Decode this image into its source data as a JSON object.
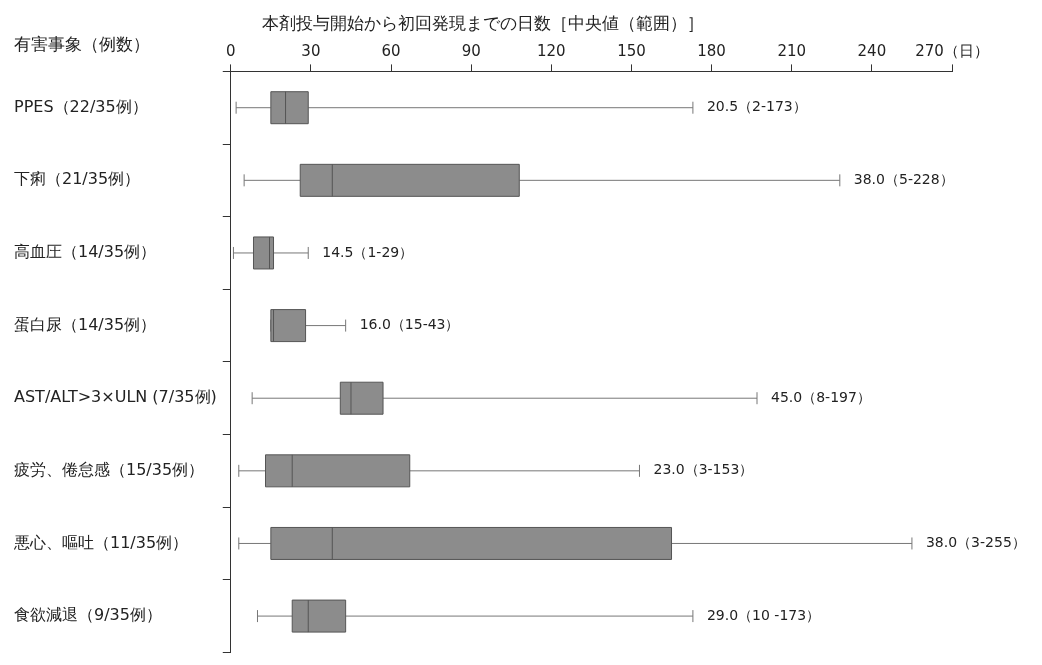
{
  "chart_data": {
    "type": "box",
    "orientation": "horizontal",
    "title": "本剤投与開始から初回発現までの日数［中央値（範囲）］",
    "ylabel": "有害事象（例数）",
    "categories": [
      "PPES（22/35例）",
      "下痢（21/35例）",
      "高血圧（14/35例）",
      "蛋白尿（14/35例）",
      "AST/ALT>3×ULN (7/35例)",
      "疲労、倦怠感（15/35例）",
      "悪心、嘔吐（11/35例）",
      "食欲減退（9/35例）"
    ],
    "color": "#8c8c8c",
    "boxes": [
      {
        "low": 2,
        "q1": 15,
        "median": 20.5,
        "q3": 29,
        "high": 173
      },
      {
        "low": 5,
        "q1": 26,
        "median": 38,
        "q3": 108,
        "high": 228
      },
      {
        "low": 1,
        "q1": 8.5,
        "median": 14.5,
        "q3": 16,
        "high": 29
      },
      {
        "low": 15,
        "q1": 15,
        "median": 16,
        "q3": 28,
        "high": 43
      },
      {
        "low": 8,
        "q1": 41,
        "median": 45,
        "q3": 57,
        "high": 197
      },
      {
        "low": 3,
        "q1": 13,
        "median": 23,
        "q3": 67,
        "high": 153
      },
      {
        "low": 3,
        "q1": 15,
        "median": 38,
        "q3": 165,
        "high": 255
      },
      {
        "low": 10,
        "q1": 23,
        "median": 29,
        "q3": 43,
        "high": 173
      }
    ],
    "value_labels": [
      "20.5（2-173）",
      "38.0（5-228）",
      "14.5（1-29）",
      "16.0（15-43）",
      "45.0（8-197）",
      "23.0（3-153）",
      "38.0（3-255）",
      "29.0（10 -173）"
    ],
    "xlim": [
      0,
      270
    ],
    "xticks": [
      0,
      30,
      60,
      90,
      120,
      150,
      180,
      210,
      240,
      {
        "value": 270,
        "label": "270（日）"
      }
    ]
  }
}
